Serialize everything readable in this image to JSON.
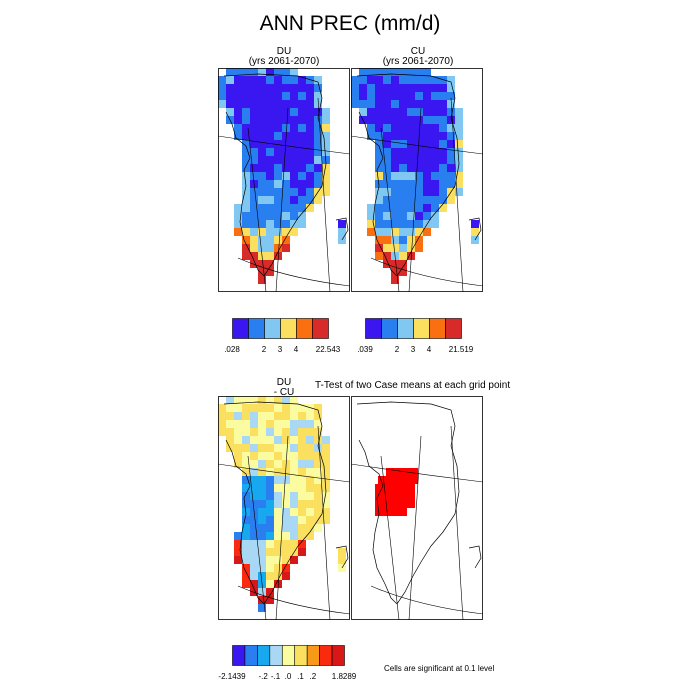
{
  "title": "ANN PREC (mm/d)",
  "panels": {
    "du": {
      "line1": "DU",
      "line2": "(yrs 2061-2070)"
    },
    "cu": {
      "line1": "CU",
      "line2": "(yrs 2061-2070)"
    },
    "diff": {
      "line1": "DU",
      "line2": "- CU"
    },
    "ttest": {
      "title": "T-Test of two Case means at each grid point",
      "note": "Cells are significant at 0.1 level"
    }
  },
  "colorbars": {
    "du": {
      "colors": [
        "#3a16f0",
        "#2a7ff0",
        "#80c8f2",
        "#fbe060",
        "#fa7010",
        "#d82a28"
      ],
      "labels": [
        ".028",
        "2",
        "3",
        "4",
        "22.543"
      ]
    },
    "cu": {
      "colors": [
        "#3a16f0",
        "#2a7ff0",
        "#80c8f2",
        "#fbe060",
        "#fa7010",
        "#d82a28"
      ],
      "labels": [
        ".039",
        "2",
        "3",
        "4",
        "21.519"
      ]
    },
    "diff": {
      "colors": [
        "#3a16f0",
        "#2a7ff0",
        "#18a8f0",
        "#a8d8f4",
        "#fbfba0",
        "#fbe060",
        "#f89a18",
        "#fa2a10",
        "#d81818"
      ],
      "labels": [
        "-2.1439",
        "-.2",
        "-.1",
        ".0",
        ".1",
        ".2",
        "1.8289"
      ]
    }
  },
  "significance_color": "#ff0000"
}
